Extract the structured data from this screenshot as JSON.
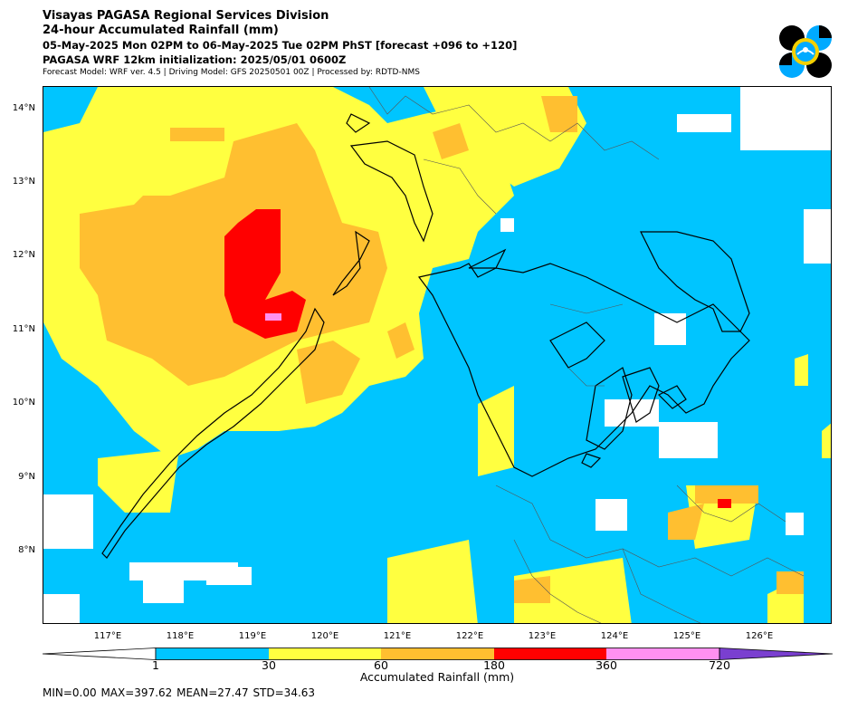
{
  "header": {
    "title_line1": "Visayas PAGASA Regional Services Division",
    "title_line2": "24-hour Accumulated Rainfall (mm)",
    "title_line3": "05-May-2025 Mon 02PM to 06-May-2025 Tue 02PM PhST [forecast +096 to +120]",
    "title_line4": "PAGASA WRF 12km initialization: 2025/05/01 0600Z",
    "title_line5": "Forecast Model: WRF ver. 4.5 | Driving Model: GFS 20250501 00Z | Processed by: RDTD-NMS"
  },
  "map": {
    "lat_labels": [
      "14°N",
      "13°N",
      "12°N",
      "11°N",
      "10°N",
      "9°N",
      "8°N"
    ],
    "lon_labels": [
      "117°E",
      "118°E",
      "119°E",
      "120°E",
      "121°E",
      "122°E",
      "123°E",
      "124°E",
      "125°E",
      "126°E"
    ],
    "region": "Visayas"
  },
  "colorbar": {
    "ticks": [
      "1",
      "30",
      "60",
      "180",
      "360",
      "720"
    ],
    "label": "Accumulated Rainfall (mm)",
    "colors": {
      "below": "#ffffff",
      "c1_30": "#00c5ff",
      "c30_60": "#ffff40",
      "c60_180": "#ffbf30",
      "c180_360": "#ff0000",
      "c360_720": "#ff90f0",
      "above": "#7a3fd0"
    }
  },
  "stats": {
    "text": "MIN=0.00   MAX=397.62   MEAN=27.47   STD=34.63"
  }
}
